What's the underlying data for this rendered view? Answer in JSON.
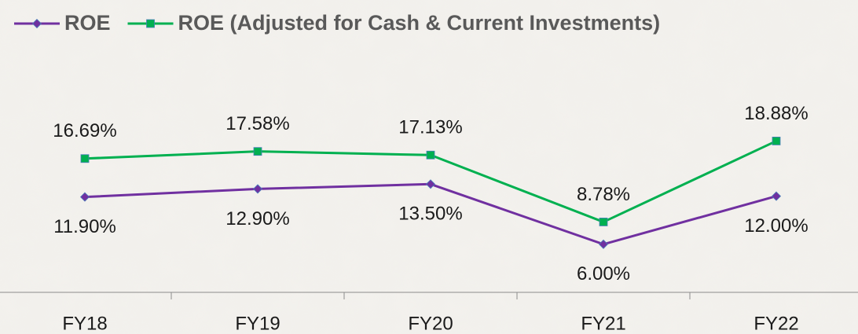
{
  "chart_data": {
    "type": "line",
    "categories": [
      "FY18",
      "FY19",
      "FY20",
      "FY21",
      "FY22"
    ],
    "series": [
      {
        "name": "ROE",
        "color": "#7030a0",
        "marker": "diamond",
        "values": [
          11.9,
          12.9,
          13.5,
          6.0,
          12.0
        ],
        "value_labels": [
          "11.90%",
          "12.90%",
          "13.50%",
          "6.00%",
          "12.00%"
        ]
      },
      {
        "name": "ROE (Adjusted for Cash & Current Investments)",
        "color": "#00b050",
        "marker": "square",
        "values": [
          16.69,
          17.58,
          17.13,
          8.78,
          18.88
        ],
        "value_labels": [
          "16.69%",
          "17.58%",
          "17.13%",
          "8.78%",
          "18.88%"
        ]
      }
    ],
    "ylim": [
      0,
      30
    ],
    "legend": "top"
  }
}
